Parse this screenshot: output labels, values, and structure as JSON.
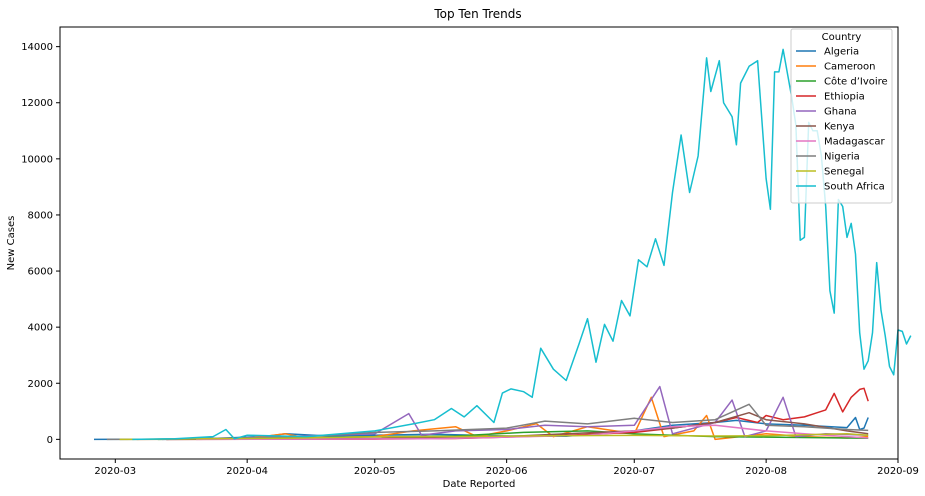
{
  "chart_data": {
    "type": "line",
    "title": "Top Ten Trends",
    "xlabel": "Date Reported",
    "ylabel": "New Cases",
    "x_range": [
      "2020-02-17",
      "2020-09-01"
    ],
    "ylim": [
      -700,
      14700
    ],
    "x_ticks": [
      {
        "date": "2020-03-01",
        "label": "2020-03"
      },
      {
        "date": "2020-04-01",
        "label": "2020-04"
      },
      {
        "date": "2020-05-01",
        "label": "2020-05"
      },
      {
        "date": "2020-06-01",
        "label": "2020-06"
      },
      {
        "date": "2020-07-01",
        "label": "2020-07"
      },
      {
        "date": "2020-08-01",
        "label": "2020-08"
      },
      {
        "date": "2020-09-01",
        "label": "2020-09"
      }
    ],
    "y_ticks": [
      0,
      2000,
      4000,
      6000,
      8000,
      10000,
      12000,
      14000
    ],
    "grid": false,
    "legend": {
      "title": "Country",
      "position": "top-right"
    },
    "series": [
      {
        "name": "Algeria",
        "color": "#1f77b4",
        "points": [
          [
            "2020-02-25",
            0
          ],
          [
            "2020-03-10",
            5
          ],
          [
            "2020-03-25",
            40
          ],
          [
            "2020-04-05",
            100
          ],
          [
            "2020-04-10",
            200
          ],
          [
            "2020-04-20",
            120
          ],
          [
            "2020-05-01",
            150
          ],
          [
            "2020-05-15",
            180
          ],
          [
            "2020-06-01",
            120
          ],
          [
            "2020-06-15",
            110
          ],
          [
            "2020-07-01",
            300
          ],
          [
            "2020-07-10",
            500
          ],
          [
            "2020-07-20",
            600
          ],
          [
            "2020-07-25",
            675
          ],
          [
            "2020-08-01",
            550
          ],
          [
            "2020-08-10",
            500
          ],
          [
            "2020-08-20",
            420
          ],
          [
            "2020-08-22",
            780
          ],
          [
            "2020-08-23",
            350
          ],
          [
            "2020-08-24",
            400
          ],
          [
            "2020-08-25",
            780
          ]
        ]
      },
      {
        "name": "Cameroon",
        "color": "#ff7f0e",
        "points": [
          [
            "2020-03-06",
            0
          ],
          [
            "2020-03-20",
            10
          ],
          [
            "2020-04-01",
            30
          ],
          [
            "2020-04-10",
            200
          ],
          [
            "2020-04-15",
            50
          ],
          [
            "2020-05-01",
            100
          ],
          [
            "2020-05-10",
            300
          ],
          [
            "2020-05-20",
            450
          ],
          [
            "2020-05-25",
            100
          ],
          [
            "2020-06-01",
            300
          ],
          [
            "2020-06-08",
            560
          ],
          [
            "2020-06-12",
            100
          ],
          [
            "2020-06-20",
            450
          ],
          [
            "2020-07-01",
            200
          ],
          [
            "2020-07-05",
            1500
          ],
          [
            "2020-07-08",
            100
          ],
          [
            "2020-07-15",
            300
          ],
          [
            "2020-07-18",
            850
          ],
          [
            "2020-07-20",
            0
          ],
          [
            "2020-08-01",
            200
          ],
          [
            "2020-08-10",
            100
          ],
          [
            "2020-08-20",
            50
          ],
          [
            "2020-08-25",
            100
          ]
        ]
      },
      {
        "name": "Côte d’Ivoire",
        "color": "#2ca02c",
        "points": [
          [
            "2020-03-11",
            0
          ],
          [
            "2020-03-25",
            20
          ],
          [
            "2020-04-10",
            50
          ],
          [
            "2020-05-01",
            90
          ],
          [
            "2020-05-20",
            120
          ],
          [
            "2020-06-05",
            250
          ],
          [
            "2020-06-20",
            300
          ],
          [
            "2020-07-01",
            200
          ],
          [
            "2020-07-10",
            150
          ],
          [
            "2020-07-20",
            100
          ],
          [
            "2020-08-01",
            80
          ],
          [
            "2020-08-15",
            60
          ],
          [
            "2020-08-25",
            40
          ]
        ]
      },
      {
        "name": "Ethiopia",
        "color": "#d62728",
        "points": [
          [
            "2020-03-13",
            0
          ],
          [
            "2020-04-01",
            5
          ],
          [
            "2020-05-01",
            10
          ],
          [
            "2020-05-20",
            30
          ],
          [
            "2020-06-01",
            80
          ],
          [
            "2020-06-15",
            150
          ],
          [
            "2020-07-01",
            250
          ],
          [
            "2020-07-10",
            400
          ],
          [
            "2020-07-20",
            600
          ],
          [
            "2020-07-25",
            780
          ],
          [
            "2020-07-30",
            600
          ],
          [
            "2020-08-01",
            850
          ],
          [
            "2020-08-05",
            700
          ],
          [
            "2020-08-10",
            800
          ],
          [
            "2020-08-13",
            950
          ],
          [
            "2020-08-15",
            1050
          ],
          [
            "2020-08-17",
            1640
          ],
          [
            "2020-08-19",
            980
          ],
          [
            "2020-08-21",
            1500
          ],
          [
            "2020-08-23",
            1780
          ],
          [
            "2020-08-24",
            1820
          ],
          [
            "2020-08-25",
            1360
          ]
        ]
      },
      {
        "name": "Ghana",
        "color": "#9467bd",
        "points": [
          [
            "2020-03-12",
            0
          ],
          [
            "2020-04-01",
            50
          ],
          [
            "2020-04-15",
            120
          ],
          [
            "2020-05-01",
            200
          ],
          [
            "2020-05-09",
            920
          ],
          [
            "2020-05-12",
            150
          ],
          [
            "2020-05-20",
            300
          ],
          [
            "2020-06-01",
            350
          ],
          [
            "2020-06-10",
            500
          ],
          [
            "2020-06-20",
            450
          ],
          [
            "2020-07-01",
            500
          ],
          [
            "2020-07-07",
            1880
          ],
          [
            "2020-07-10",
            200
          ],
          [
            "2020-07-20",
            600
          ],
          [
            "2020-07-24",
            1400
          ],
          [
            "2020-07-27",
            100
          ],
          [
            "2020-08-01",
            300
          ],
          [
            "2020-08-05",
            1500
          ],
          [
            "2020-08-08",
            100
          ],
          [
            "2020-08-15",
            200
          ],
          [
            "2020-08-25",
            150
          ]
        ]
      },
      {
        "name": "Kenya",
        "color": "#8c564b",
        "points": [
          [
            "2020-03-13",
            0
          ],
          [
            "2020-04-01",
            10
          ],
          [
            "2020-05-01",
            30
          ],
          [
            "2020-06-01",
            100
          ],
          [
            "2020-06-15",
            200
          ],
          [
            "2020-07-01",
            300
          ],
          [
            "2020-07-10",
            400
          ],
          [
            "2020-07-20",
            600
          ],
          [
            "2020-07-28",
            950
          ],
          [
            "2020-08-01",
            700
          ],
          [
            "2020-08-10",
            550
          ],
          [
            "2020-08-20",
            300
          ],
          [
            "2020-08-25",
            200
          ]
        ]
      },
      {
        "name": "Madagascar",
        "color": "#e377c2",
        "points": [
          [
            "2020-03-20",
            0
          ],
          [
            "2020-04-15",
            10
          ],
          [
            "2020-05-15",
            20
          ],
          [
            "2020-06-01",
            80
          ],
          [
            "2020-06-20",
            150
          ],
          [
            "2020-07-01",
            300
          ],
          [
            "2020-07-10",
            450
          ],
          [
            "2020-07-20",
            500
          ],
          [
            "2020-08-01",
            300
          ],
          [
            "2020-08-10",
            200
          ],
          [
            "2020-08-20",
            100
          ],
          [
            "2020-08-25",
            50
          ]
        ]
      },
      {
        "name": "Nigeria",
        "color": "#7f7f7f",
        "points": [
          [
            "2020-02-28",
            0
          ],
          [
            "2020-03-15",
            5
          ],
          [
            "2020-04-01",
            50
          ],
          [
            "2020-04-15",
            100
          ],
          [
            "2020-05-01",
            250
          ],
          [
            "2020-05-15",
            300
          ],
          [
            "2020-06-01",
            400
          ],
          [
            "2020-06-10",
            650
          ],
          [
            "2020-06-20",
            550
          ],
          [
            "2020-07-01",
            750
          ],
          [
            "2020-07-10",
            600
          ],
          [
            "2020-07-20",
            700
          ],
          [
            "2020-07-28",
            1250
          ],
          [
            "2020-08-01",
            500
          ],
          [
            "2020-08-10",
            450
          ],
          [
            "2020-08-20",
            350
          ],
          [
            "2020-08-25",
            320
          ]
        ]
      },
      {
        "name": "Senegal",
        "color": "#bcbd22",
        "points": [
          [
            "2020-03-02",
            0
          ],
          [
            "2020-03-20",
            20
          ],
          [
            "2020-04-10",
            40
          ],
          [
            "2020-05-01",
            90
          ],
          [
            "2020-05-20",
            100
          ],
          [
            "2020-06-10",
            130
          ],
          [
            "2020-07-01",
            140
          ],
          [
            "2020-07-20",
            120
          ],
          [
            "2020-08-01",
            130
          ],
          [
            "2020-08-20",
            200
          ],
          [
            "2020-08-25",
            150
          ]
        ]
      },
      {
        "name": "South Africa",
        "color": "#17becf",
        "points": [
          [
            "2020-03-05",
            0
          ],
          [
            "2020-03-15",
            20
          ],
          [
            "2020-03-24",
            100
          ],
          [
            "2020-03-27",
            350
          ],
          [
            "2020-03-29",
            20
          ],
          [
            "2020-04-01",
            150
          ],
          [
            "2020-04-15",
            100
          ],
          [
            "2020-05-01",
            300
          ],
          [
            "2020-05-10",
            550
          ],
          [
            "2020-05-15",
            700
          ],
          [
            "2020-05-19",
            1100
          ],
          [
            "2020-05-22",
            800
          ],
          [
            "2020-05-25",
            1200
          ],
          [
            "2020-05-29",
            600
          ],
          [
            "2020-05-31",
            1650
          ],
          [
            "2020-06-02",
            1800
          ],
          [
            "2020-06-05",
            1700
          ],
          [
            "2020-06-07",
            1500
          ],
          [
            "2020-06-09",
            3250
          ],
          [
            "2020-06-12",
            2500
          ],
          [
            "2020-06-15",
            2100
          ],
          [
            "2020-06-18",
            3400
          ],
          [
            "2020-06-20",
            4300
          ],
          [
            "2020-06-22",
            2750
          ],
          [
            "2020-06-24",
            4100
          ],
          [
            "2020-06-26",
            3500
          ],
          [
            "2020-06-28",
            4950
          ],
          [
            "2020-06-30",
            4400
          ],
          [
            "2020-07-02",
            6400
          ],
          [
            "2020-07-04",
            6150
          ],
          [
            "2020-07-06",
            7150
          ],
          [
            "2020-07-08",
            6200
          ],
          [
            "2020-07-10",
            8800
          ],
          [
            "2020-07-12",
            10850
          ],
          [
            "2020-07-14",
            8800
          ],
          [
            "2020-07-16",
            10100
          ],
          [
            "2020-07-18",
            13600
          ],
          [
            "2020-07-19",
            12400
          ],
          [
            "2020-07-21",
            13500
          ],
          [
            "2020-07-22",
            12000
          ],
          [
            "2020-07-24",
            11500
          ],
          [
            "2020-07-25",
            10500
          ],
          [
            "2020-07-26",
            12700
          ],
          [
            "2020-07-28",
            13300
          ],
          [
            "2020-07-29",
            13400
          ],
          [
            "2020-07-30",
            13500
          ],
          [
            "2020-08-01",
            9300
          ],
          [
            "2020-08-02",
            8200
          ],
          [
            "2020-08-03",
            13100
          ],
          [
            "2020-08-04",
            13100
          ],
          [
            "2020-08-05",
            13900
          ],
          [
            "2020-08-07",
            12200
          ],
          [
            "2020-08-08",
            11200
          ],
          [
            "2020-08-09",
            7100
          ],
          [
            "2020-08-10",
            7200
          ],
          [
            "2020-08-11",
            11300
          ],
          [
            "2020-08-12",
            11000
          ],
          [
            "2020-08-13",
            11000
          ],
          [
            "2020-08-14",
            10100
          ],
          [
            "2020-08-15",
            8300
          ],
          [
            "2020-08-16",
            5300
          ],
          [
            "2020-08-17",
            4500
          ],
          [
            "2020-08-18",
            8550
          ],
          [
            "2020-08-19",
            8300
          ],
          [
            "2020-08-20",
            7200
          ],
          [
            "2020-08-21",
            7700
          ],
          [
            "2020-08-22",
            6600
          ],
          [
            "2020-08-23",
            3800
          ],
          [
            "2020-08-24",
            2500
          ],
          [
            "2020-08-25",
            2800
          ],
          [
            "2020-08-26",
            3800
          ],
          [
            "2020-08-27",
            6300
          ],
          [
            "2020-08-28",
            4600
          ],
          [
            "2020-08-29",
            3700
          ],
          [
            "2020-08-30",
            2600
          ],
          [
            "2020-08-31",
            2300
          ],
          [
            "2020-09-01",
            3900
          ],
          [
            "2020-09-02",
            3850
          ],
          [
            "2020-09-03",
            3400
          ],
          [
            "2020-09-04",
            3700
          ]
        ]
      }
    ]
  }
}
